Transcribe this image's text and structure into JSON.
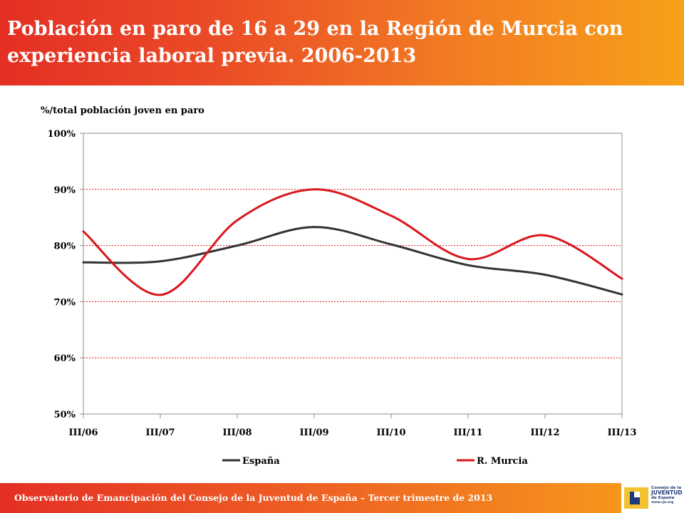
{
  "header": {
    "title": "Población en paro de 16 a 29 en la Región de Murcia con experiencia laboral previa. 2006-2013"
  },
  "footer": {
    "text": "Observatorio de Emancipación del Consejo de la Juventud de España – Tercer trimestre de 2013",
    "logo": {
      "line1": "Consejo de la",
      "line2": "JUVENTUD",
      "line3": "de España",
      "url": "www.cje.org"
    }
  },
  "colors": {
    "espana": "#333333",
    "murcia": "#d9161c",
    "grid": "#d9161c",
    "axis": "#8c8c8c"
  },
  "chart_data": {
    "type": "line",
    "ylabel": "%/total población joven en paro",
    "categories": [
      "III/06",
      "III/07",
      "III/08",
      "III/09",
      "III/10",
      "III/11",
      "III/12",
      "III/13"
    ],
    "ylim": [
      50,
      100
    ],
    "yticks": [
      {
        "value": 50,
        "label": "50%"
      },
      {
        "value": 60,
        "label": "60%"
      },
      {
        "value": 70,
        "label": "70%"
      },
      {
        "value": 80,
        "label": "80%"
      },
      {
        "value": 90,
        "label": "90%"
      },
      {
        "value": 100,
        "label": "100%"
      }
    ],
    "grid": true,
    "legend_position": "bottom",
    "series": [
      {
        "name": "España",
        "values": [
          77.0,
          77.2,
          80.0,
          83.3,
          80.2,
          76.5,
          74.8,
          71.3
        ]
      },
      {
        "name": "R. Murcia",
        "values": [
          82.5,
          71.2,
          84.5,
          90.0,
          85.3,
          77.6,
          81.8,
          74.1
        ]
      }
    ]
  }
}
